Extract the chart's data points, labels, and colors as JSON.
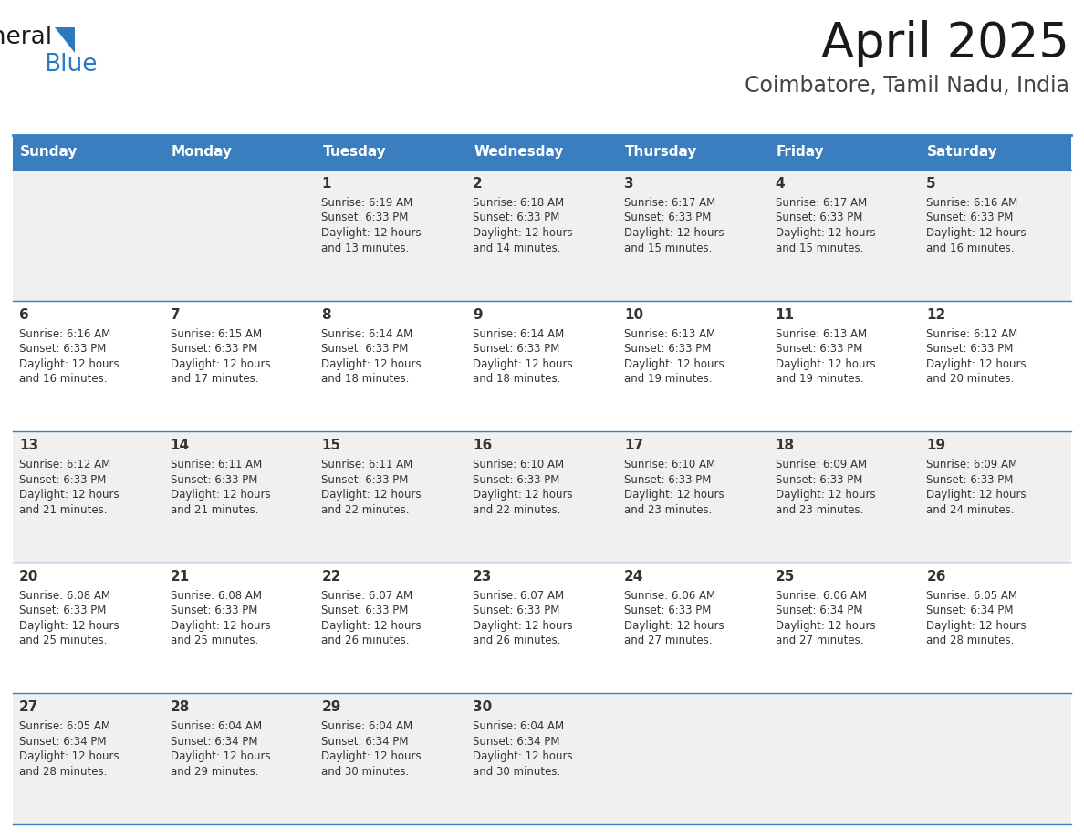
{
  "title": "April 2025",
  "subtitle": "Coimbatore, Tamil Nadu, India",
  "header_bg": "#3a7ebf",
  "header_text": "#ffffff",
  "row_bg_odd": "#f0f0f0",
  "row_bg_even": "#ffffff",
  "cell_border": "#3a7ebf",
  "day_headers": [
    "Sunday",
    "Monday",
    "Tuesday",
    "Wednesday",
    "Thursday",
    "Friday",
    "Saturday"
  ],
  "title_color": "#1a1a1a",
  "subtitle_color": "#444444",
  "text_color": "#333333",
  "days": [
    {
      "date": 1,
      "col": 2,
      "row": 0,
      "sunrise": "6:19 AM",
      "sunset": "6:33 PM",
      "daylight_min": 13
    },
    {
      "date": 2,
      "col": 3,
      "row": 0,
      "sunrise": "6:18 AM",
      "sunset": "6:33 PM",
      "daylight_min": 14
    },
    {
      "date": 3,
      "col": 4,
      "row": 0,
      "sunrise": "6:17 AM",
      "sunset": "6:33 PM",
      "daylight_min": 15
    },
    {
      "date": 4,
      "col": 5,
      "row": 0,
      "sunrise": "6:17 AM",
      "sunset": "6:33 PM",
      "daylight_min": 15
    },
    {
      "date": 5,
      "col": 6,
      "row": 0,
      "sunrise": "6:16 AM",
      "sunset": "6:33 PM",
      "daylight_min": 16
    },
    {
      "date": 6,
      "col": 0,
      "row": 1,
      "sunrise": "6:16 AM",
      "sunset": "6:33 PM",
      "daylight_min": 16
    },
    {
      "date": 7,
      "col": 1,
      "row": 1,
      "sunrise": "6:15 AM",
      "sunset": "6:33 PM",
      "daylight_min": 17
    },
    {
      "date": 8,
      "col": 2,
      "row": 1,
      "sunrise": "6:14 AM",
      "sunset": "6:33 PM",
      "daylight_min": 18
    },
    {
      "date": 9,
      "col": 3,
      "row": 1,
      "sunrise": "6:14 AM",
      "sunset": "6:33 PM",
      "daylight_min": 18
    },
    {
      "date": 10,
      "col": 4,
      "row": 1,
      "sunrise": "6:13 AM",
      "sunset": "6:33 PM",
      "daylight_min": 19
    },
    {
      "date": 11,
      "col": 5,
      "row": 1,
      "sunrise": "6:13 AM",
      "sunset": "6:33 PM",
      "daylight_min": 19
    },
    {
      "date": 12,
      "col": 6,
      "row": 1,
      "sunrise": "6:12 AM",
      "sunset": "6:33 PM",
      "daylight_min": 20
    },
    {
      "date": 13,
      "col": 0,
      "row": 2,
      "sunrise": "6:12 AM",
      "sunset": "6:33 PM",
      "daylight_min": 21
    },
    {
      "date": 14,
      "col": 1,
      "row": 2,
      "sunrise": "6:11 AM",
      "sunset": "6:33 PM",
      "daylight_min": 21
    },
    {
      "date": 15,
      "col": 2,
      "row": 2,
      "sunrise": "6:11 AM",
      "sunset": "6:33 PM",
      "daylight_min": 22
    },
    {
      "date": 16,
      "col": 3,
      "row": 2,
      "sunrise": "6:10 AM",
      "sunset": "6:33 PM",
      "daylight_min": 22
    },
    {
      "date": 17,
      "col": 4,
      "row": 2,
      "sunrise": "6:10 AM",
      "sunset": "6:33 PM",
      "daylight_min": 23
    },
    {
      "date": 18,
      "col": 5,
      "row": 2,
      "sunrise": "6:09 AM",
      "sunset": "6:33 PM",
      "daylight_min": 23
    },
    {
      "date": 19,
      "col": 6,
      "row": 2,
      "sunrise": "6:09 AM",
      "sunset": "6:33 PM",
      "daylight_min": 24
    },
    {
      "date": 20,
      "col": 0,
      "row": 3,
      "sunrise": "6:08 AM",
      "sunset": "6:33 PM",
      "daylight_min": 25
    },
    {
      "date": 21,
      "col": 1,
      "row": 3,
      "sunrise": "6:08 AM",
      "sunset": "6:33 PM",
      "daylight_min": 25
    },
    {
      "date": 22,
      "col": 2,
      "row": 3,
      "sunrise": "6:07 AM",
      "sunset": "6:33 PM",
      "daylight_min": 26
    },
    {
      "date": 23,
      "col": 3,
      "row": 3,
      "sunrise": "6:07 AM",
      "sunset": "6:33 PM",
      "daylight_min": 26
    },
    {
      "date": 24,
      "col": 4,
      "row": 3,
      "sunrise": "6:06 AM",
      "sunset": "6:33 PM",
      "daylight_min": 27
    },
    {
      "date": 25,
      "col": 5,
      "row": 3,
      "sunrise": "6:06 AM",
      "sunset": "6:34 PM",
      "daylight_min": 27
    },
    {
      "date": 26,
      "col": 6,
      "row": 3,
      "sunrise": "6:05 AM",
      "sunset": "6:34 PM",
      "daylight_min": 28
    },
    {
      "date": 27,
      "col": 0,
      "row": 4,
      "sunrise": "6:05 AM",
      "sunset": "6:34 PM",
      "daylight_min": 28
    },
    {
      "date": 28,
      "col": 1,
      "row": 4,
      "sunrise": "6:04 AM",
      "sunset": "6:34 PM",
      "daylight_min": 29
    },
    {
      "date": 29,
      "col": 2,
      "row": 4,
      "sunrise": "6:04 AM",
      "sunset": "6:34 PM",
      "daylight_min": 30
    },
    {
      "date": 30,
      "col": 3,
      "row": 4,
      "sunrise": "6:04 AM",
      "sunset": "6:34 PM",
      "daylight_min": 30
    }
  ],
  "num_rows": 5,
  "num_cols": 7,
  "fig_width": 11.88,
  "fig_height": 9.18,
  "dpi": 100
}
